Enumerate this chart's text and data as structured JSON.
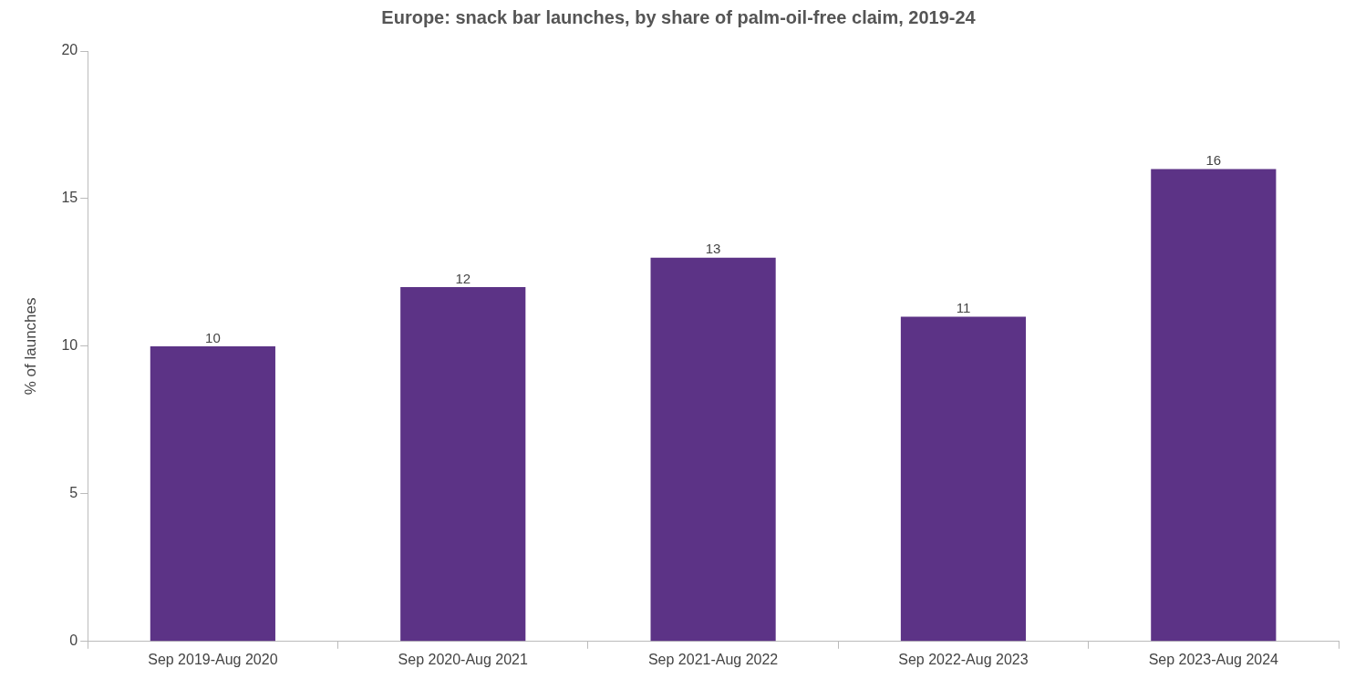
{
  "chart_data": {
    "type": "bar",
    "title": "Europe: snack bar launches, by share of palm-oil-free claim, 2019-24",
    "ylabel": "% of launches",
    "categories": [
      "Sep 2019-Aug 2020",
      "Sep 2020-Aug 2021",
      "Sep 2021-Aug 2022",
      "Sep 2022-Aug 2023",
      "Sep 2023-Aug 2024"
    ],
    "values": [
      10,
      12,
      13,
      11,
      16
    ],
    "color": "#5c3386",
    "ylim": [
      0,
      20
    ],
    "yticks": [
      0,
      5,
      10,
      15,
      20
    ],
    "data_labels": true,
    "grid": false,
    "legend": false
  }
}
